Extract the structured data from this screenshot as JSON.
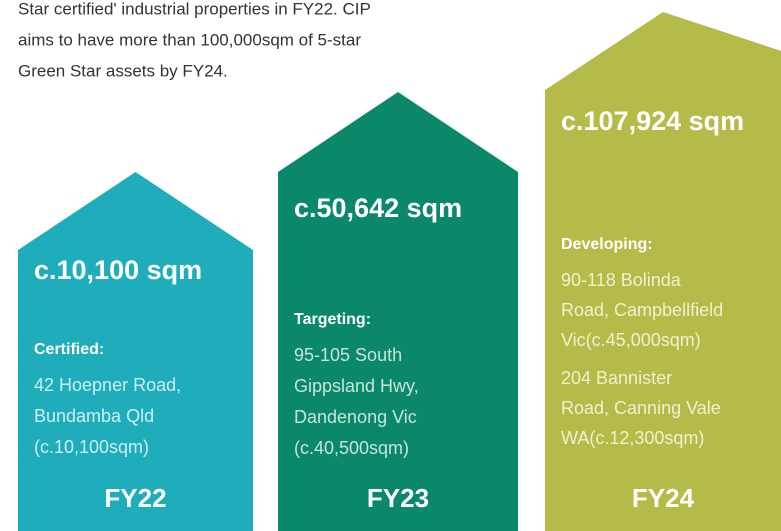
{
  "intro": [
    "Star certified' industrial properties in FY22. CIP",
    "aims to have more than 100,000sqm of 5-star",
    "Green Star assets by FY24."
  ],
  "columns": [
    {
      "heading": "c.10,100 sqm",
      "groups": [
        {
          "label": "Certified:",
          "lines": [
            "42 Hoepner Road,",
            "Bundamba Qld",
            "(c.10,100sqm)"
          ]
        }
      ],
      "year": "FY22"
    },
    {
      "heading": "c.50,642 sqm",
      "groups": [
        {
          "label": "Targeting:",
          "lines": [
            "95-105 South",
            "Gippsland Hwy,",
            "Dandenong Vic",
            "(c.40,500sqm)"
          ]
        }
      ],
      "year": "FY23"
    },
    {
      "heading": "c.107,924 sqm",
      "groups": [
        {
          "label": "Developing:",
          "lines": [
            "90-118 Bolinda",
            "Road, Campbellfield",
            "Vic(c.45,000sqm)"
          ]
        },
        {
          "lines": [
            "204 Bannister",
            "Road, Canning Vale",
            "WA(c.12,300sqm)"
          ]
        }
      ],
      "year": "FY24"
    }
  ]
}
